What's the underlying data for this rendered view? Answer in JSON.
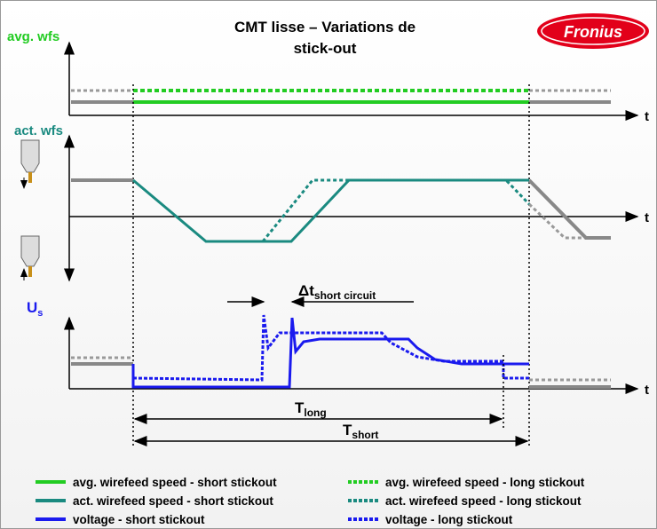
{
  "header": {
    "title_lines": [
      "CMT lisse –  Variations de",
      "stick-out"
    ],
    "logo": "Fronius"
  },
  "panels": [
    {
      "label": "avg. wfs",
      "axis": "t"
    },
    {
      "label": "act. wfs",
      "axis": "t"
    },
    {
      "label": {
        "main": "U",
        "sub": "s"
      },
      "axis": "t"
    }
  ],
  "annotations": {
    "delta": {
      "main": "Δt",
      "sub": "short circuit"
    },
    "t_long": {
      "main": "T",
      "sub": "long"
    },
    "t_short": {
      "main": "T",
      "sub": "short"
    }
  },
  "legend": [
    {
      "label": "avg. wirefeed speed - short stickout",
      "color": "#22cc22",
      "style": "solid"
    },
    {
      "label": "avg. wirefeed speed - long stickout",
      "color": "#22cc22",
      "style": "dashed"
    },
    {
      "label": "act. wirefeed speed - short stickout",
      "color": "#1a8a80",
      "style": "solid"
    },
    {
      "label": "act. wirefeed speed - long stickout",
      "color": "#1a8a80",
      "style": "dashed"
    },
    {
      "label": "voltage - short stickout",
      "color": "#1a1aee",
      "style": "solid"
    },
    {
      "label": "voltage - long stickout",
      "color": "#1a1aee",
      "style": "dashed"
    }
  ]
}
